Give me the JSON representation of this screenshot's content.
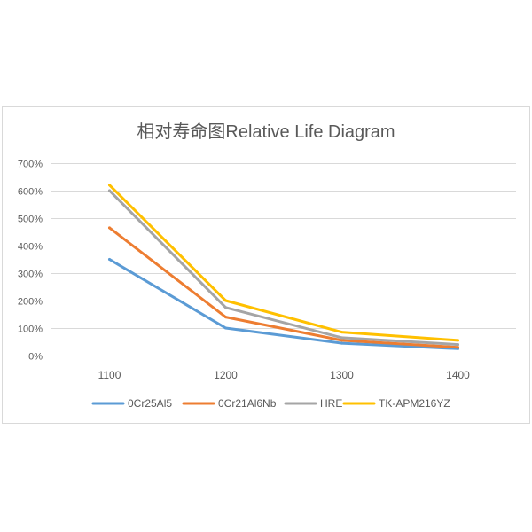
{
  "chart_data": {
    "type": "line",
    "title": "相对寿命图Relative Life Diagram",
    "categories": [
      "1100",
      "1200",
      "1300",
      "1400"
    ],
    "ytick_labels": [
      "0%",
      "100%",
      "200%",
      "300%",
      "400%",
      "500%",
      "600%",
      "700%"
    ],
    "ylim": [
      0,
      700
    ],
    "grid": true,
    "legend_position": "bottom",
    "series": [
      {
        "name": "0Cr25Al5",
        "color": "#5B9BD5",
        "values": [
          350,
          100,
          45,
          25
        ]
      },
      {
        "name": "0Cr21Al6Nb",
        "color": "#ED7D31",
        "values": [
          465,
          140,
          55,
          30
        ]
      },
      {
        "name": "HRE",
        "color": "#A5A5A5",
        "values": [
          600,
          175,
          65,
          40
        ]
      },
      {
        "name": "TK-APM216YZ",
        "color": "#FFC000",
        "values": [
          620,
          200,
          85,
          55
        ]
      }
    ]
  },
  "colors": {
    "text": "#595959",
    "grid": "#D9D9D9",
    "frame": "#D9D9D9",
    "background": "#FFFFFF"
  }
}
